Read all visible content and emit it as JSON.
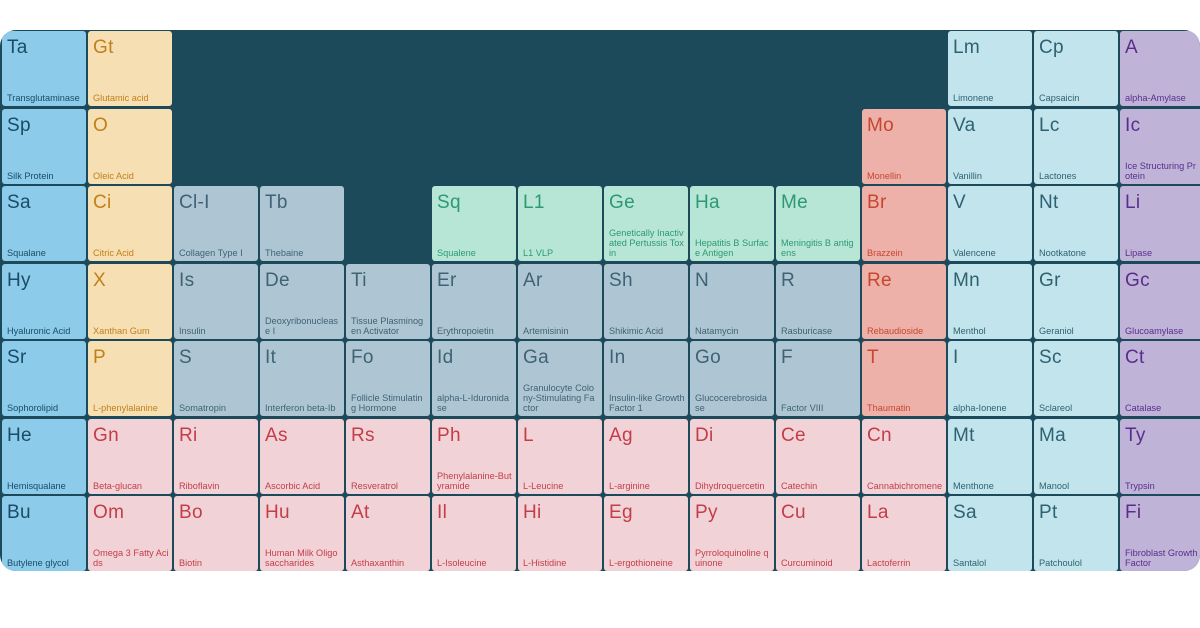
{
  "colors": {
    "frame": "#1d4a5b",
    "blue": "#8ccbe9",
    "cream": "#f5dfb3",
    "gray": "#aec6d3",
    "mint": "#b8e6d6",
    "salmon": "#eeb1a9",
    "pink": "#f1d3d7",
    "ice": "#c2e4ec",
    "purple": "#c0b3d8"
  },
  "elements": [
    {
      "symbol": "Ta",
      "name": "Transglutaminase",
      "row": 1,
      "col": 1,
      "group": "blue"
    },
    {
      "symbol": "Gt",
      "name": "Glutamic acid",
      "row": 1,
      "col": 2,
      "group": "cream"
    },
    {
      "symbol": "Lm",
      "name": "Limonene",
      "row": 1,
      "col": 12,
      "group": "ice"
    },
    {
      "symbol": "Cp",
      "name": "Capsaicin",
      "row": 1,
      "col": 13,
      "group": "ice"
    },
    {
      "symbol": "A",
      "name": "alpha-Amylase",
      "row": 1,
      "col": 14,
      "group": "purple"
    },
    {
      "symbol": "Sp",
      "name": "Silk Protein",
      "row": 2,
      "col": 1,
      "group": "blue"
    },
    {
      "symbol": "O",
      "name": "Oleic Acid",
      "row": 2,
      "col": 2,
      "group": "cream"
    },
    {
      "symbol": "Mo",
      "name": "Monellin",
      "row": 2,
      "col": 11,
      "group": "salmon"
    },
    {
      "symbol": "Va",
      "name": "Vanillin",
      "row": 2,
      "col": 12,
      "group": "ice"
    },
    {
      "symbol": "Lc",
      "name": "Lactones",
      "row": 2,
      "col": 13,
      "group": "ice"
    },
    {
      "symbol": "Ic",
      "name": "Ice Structuring Protein",
      "row": 2,
      "col": 14,
      "group": "purple"
    },
    {
      "symbol": "Sa",
      "name": "Squalane",
      "row": 3,
      "col": 1,
      "group": "blue"
    },
    {
      "symbol": "Ci",
      "name": "Citric Acid",
      "row": 3,
      "col": 2,
      "group": "cream"
    },
    {
      "symbol": "Cl-I",
      "name": "Collagen Type I",
      "row": 3,
      "col": 3,
      "group": "gray"
    },
    {
      "symbol": "Tb",
      "name": "Thebaine",
      "row": 3,
      "col": 4,
      "group": "gray"
    },
    {
      "symbol": "Sq",
      "name": "Squalene",
      "row": 3,
      "col": 6,
      "group": "mint"
    },
    {
      "symbol": "L1",
      "name": "L1 VLP",
      "row": 3,
      "col": 7,
      "group": "mint"
    },
    {
      "symbol": "Ge",
      "name": "Genetically Inactivated Pertussis Toxin",
      "row": 3,
      "col": 8,
      "group": "mint"
    },
    {
      "symbol": "Ha",
      "name": "Hepatitis B Surface Antigen",
      "row": 3,
      "col": 9,
      "group": "mint"
    },
    {
      "symbol": "Me",
      "name": "Meningitis B antigens",
      "row": 3,
      "col": 10,
      "group": "mint"
    },
    {
      "symbol": "Br",
      "name": "Brazzein",
      "row": 3,
      "col": 11,
      "group": "salmon"
    },
    {
      "symbol": "V",
      "name": "Valencene",
      "row": 3,
      "col": 12,
      "group": "ice"
    },
    {
      "symbol": "Nt",
      "name": "Nootkatone",
      "row": 3,
      "col": 13,
      "group": "ice"
    },
    {
      "symbol": "Li",
      "name": "Lipase",
      "row": 3,
      "col": 14,
      "group": "purple"
    },
    {
      "symbol": "Hy",
      "name": "Hyaluronic Acid",
      "row": 4,
      "col": 1,
      "group": "blue"
    },
    {
      "symbol": "X",
      "name": "Xanthan Gum",
      "row": 4,
      "col": 2,
      "group": "cream"
    },
    {
      "symbol": "Is",
      "name": "Insulin",
      "row": 4,
      "col": 3,
      "group": "gray"
    },
    {
      "symbol": "De",
      "name": "Deoxyribonuclease I",
      "row": 4,
      "col": 4,
      "group": "gray"
    },
    {
      "symbol": "Ti",
      "name": "Tissue Plasminogen Activator",
      "row": 4,
      "col": 5,
      "group": "gray"
    },
    {
      "symbol": "Er",
      "name": "Erythropoietin",
      "row": 4,
      "col": 6,
      "group": "gray"
    },
    {
      "symbol": "Ar",
      "name": "Artemisinin",
      "row": 4,
      "col": 7,
      "group": "gray"
    },
    {
      "symbol": "Sh",
      "name": "Shikimic Acid",
      "row": 4,
      "col": 8,
      "group": "gray"
    },
    {
      "symbol": "N",
      "name": "Natamycin",
      "row": 4,
      "col": 9,
      "group": "gray"
    },
    {
      "symbol": "R",
      "name": "Rasburicase",
      "row": 4,
      "col": 10,
      "group": "gray"
    },
    {
      "symbol": "Re",
      "name": "Rebaudioside",
      "row": 4,
      "col": 11,
      "group": "salmon"
    },
    {
      "symbol": "Mn",
      "name": "Menthol",
      "row": 4,
      "col": 12,
      "group": "ice"
    },
    {
      "symbol": "Gr",
      "name": "Geraniol",
      "row": 4,
      "col": 13,
      "group": "ice"
    },
    {
      "symbol": "Gc",
      "name": "Glucoamylase",
      "row": 4,
      "col": 14,
      "group": "purple"
    },
    {
      "symbol": "Sr",
      "name": "Sophorolipid",
      "row": 5,
      "col": 1,
      "group": "blue"
    },
    {
      "symbol": "P",
      "name": "L-phenylalanine",
      "row": 5,
      "col": 2,
      "group": "cream"
    },
    {
      "symbol": "S",
      "name": "Somatropin",
      "row": 5,
      "col": 3,
      "group": "gray"
    },
    {
      "symbol": "It",
      "name": "Interferon beta-Ib",
      "row": 5,
      "col": 4,
      "group": "gray"
    },
    {
      "symbol": "Fo",
      "name": "Follicle Stimulating Hormone",
      "row": 5,
      "col": 5,
      "group": "gray"
    },
    {
      "symbol": "Id",
      "name": "alpha-L-Iduronidase",
      "row": 5,
      "col": 6,
      "group": "gray"
    },
    {
      "symbol": "Ga",
      "name": "Granulocyte Colony-Stimulating Factor",
      "row": 5,
      "col": 7,
      "group": "gray"
    },
    {
      "symbol": "In",
      "name": "Insulin-like Growth Factor 1",
      "row": 5,
      "col": 8,
      "group": "gray"
    },
    {
      "symbol": "Go",
      "name": "Glucocerebrosidase",
      "row": 5,
      "col": 9,
      "group": "gray"
    },
    {
      "symbol": "F",
      "name": "Factor VIII",
      "row": 5,
      "col": 10,
      "group": "gray"
    },
    {
      "symbol": "T",
      "name": "Thaumatin",
      "row": 5,
      "col": 11,
      "group": "salmon"
    },
    {
      "symbol": "I",
      "name": "alpha-Ionene",
      "row": 5,
      "col": 12,
      "group": "ice"
    },
    {
      "symbol": "Sc",
      "name": "Sclareol",
      "row": 5,
      "col": 13,
      "group": "ice"
    },
    {
      "symbol": "Ct",
      "name": "Catalase",
      "row": 5,
      "col": 14,
      "group": "purple"
    },
    {
      "symbol": "He",
      "name": "Hemisqualane",
      "row": 6,
      "col": 1,
      "group": "blue"
    },
    {
      "symbol": "Gn",
      "name": "Beta-glucan",
      "row": 6,
      "col": 2,
      "group": "pink"
    },
    {
      "symbol": "Ri",
      "name": "Riboflavin",
      "row": 6,
      "col": 3,
      "group": "pink"
    },
    {
      "symbol": "As",
      "name": "Ascorbic Acid",
      "row": 6,
      "col": 4,
      "group": "pink"
    },
    {
      "symbol": "Rs",
      "name": "Resveratrol",
      "row": 6,
      "col": 5,
      "group": "pink"
    },
    {
      "symbol": "Ph",
      "name": "Phenylalanine-Butyramide",
      "row": 6,
      "col": 6,
      "group": "pink"
    },
    {
      "symbol": "L",
      "name": "L-Leucine",
      "row": 6,
      "col": 7,
      "group": "pink"
    },
    {
      "symbol": "Ag",
      "name": "L-arginine",
      "row": 6,
      "col": 8,
      "group": "pink"
    },
    {
      "symbol": "Di",
      "name": "Dihydroquercetin",
      "row": 6,
      "col": 9,
      "group": "pink"
    },
    {
      "symbol": "Ce",
      "name": "Catechin",
      "row": 6,
      "col": 10,
      "group": "pink"
    },
    {
      "symbol": "Cn",
      "name": "Cannabichromene",
      "row": 6,
      "col": 11,
      "group": "pink"
    },
    {
      "symbol": "Mt",
      "name": "Menthone",
      "row": 6,
      "col": 12,
      "group": "ice"
    },
    {
      "symbol": "Ma",
      "name": "Manool",
      "row": 6,
      "col": 13,
      "group": "ice"
    },
    {
      "symbol": "Ty",
      "name": "Trypsin",
      "row": 6,
      "col": 14,
      "group": "purple"
    },
    {
      "symbol": "Bu",
      "name": "Butylene glycol",
      "row": 7,
      "col": 1,
      "group": "blue"
    },
    {
      "symbol": "Om",
      "name": "Omega 3 Fatty Acids",
      "row": 7,
      "col": 2,
      "group": "pink"
    },
    {
      "symbol": "Bo",
      "name": "Biotin",
      "row": 7,
      "col": 3,
      "group": "pink"
    },
    {
      "symbol": "Hu",
      "name": "Human Milk Oligosaccharides",
      "row": 7,
      "col": 4,
      "group": "pink"
    },
    {
      "symbol": "At",
      "name": "Asthaxanthin",
      "row": 7,
      "col": 5,
      "group": "pink"
    },
    {
      "symbol": "Il",
      "name": "L-Isoleucine",
      "row": 7,
      "col": 6,
      "group": "pink"
    },
    {
      "symbol": "Hi",
      "name": "L-Histidine",
      "row": 7,
      "col": 7,
      "group": "pink"
    },
    {
      "symbol": "Eg",
      "name": "L-ergothioneine",
      "row": 7,
      "col": 8,
      "group": "pink"
    },
    {
      "symbol": "Py",
      "name": "Pyrroloquinoline quinone",
      "row": 7,
      "col": 9,
      "group": "pink"
    },
    {
      "symbol": "Cu",
      "name": "Curcuminoid",
      "row": 7,
      "col": 10,
      "group": "pink"
    },
    {
      "symbol": "La",
      "name": "Lactoferrin",
      "row": 7,
      "col": 11,
      "group": "pink"
    },
    {
      "symbol": "Sa",
      "name": "Santalol",
      "row": 7,
      "col": 12,
      "group": "ice"
    },
    {
      "symbol": "Pt",
      "name": "Patchoulol",
      "row": 7,
      "col": 13,
      "group": "ice"
    },
    {
      "symbol": "Fi",
      "name": "Fibroblast Growth Factor",
      "row": 7,
      "col": 14,
      "group": "purple"
    }
  ]
}
